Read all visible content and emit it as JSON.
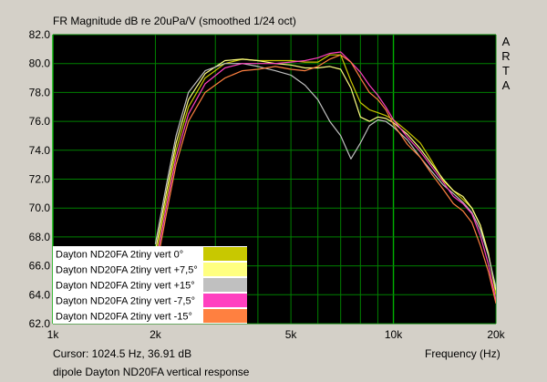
{
  "title": "FR Magnitude dB re 20uPa/V (smoothed 1/24 oct)",
  "cursor_readout": "Cursor: 1024.5 Hz, 36.91 dB",
  "caption": "dipole Dayton ND20FA vertical response",
  "logo_letters": [
    "A",
    "R",
    "T",
    "A"
  ],
  "colors": {
    "window_bg": "#d4d0c8",
    "plot_bg": "#000000",
    "grid": "#008000",
    "grid_major": "#00b000"
  },
  "chart_data": {
    "type": "line",
    "xlabel": "Frequency (Hz)",
    "ylabel": "",
    "xscale": "log",
    "xlim": [
      1000,
      20000
    ],
    "ylim": [
      62.0,
      82.0
    ],
    "x_ticks": [
      {
        "value": 1000,
        "label": "1k"
      },
      {
        "value": 2000,
        "label": "2k"
      },
      {
        "value": 5000,
        "label": "5k"
      },
      {
        "value": 10000,
        "label": "10k"
      },
      {
        "value": 20000,
        "label": "20k"
      }
    ],
    "y_ticks": [
      {
        "value": 62,
        "label": "62.0"
      },
      {
        "value": 64,
        "label": "64.0"
      },
      {
        "value": 66,
        "label": "66.0"
      },
      {
        "value": 68,
        "label": "68.0"
      },
      {
        "value": 70,
        "label": "70.0"
      },
      {
        "value": 72,
        "label": "72.0"
      },
      {
        "value": 74,
        "label": "74.0"
      },
      {
        "value": 76,
        "label": "76.0"
      },
      {
        "value": 78,
        "label": "78.0"
      },
      {
        "value": 80,
        "label": "80.0"
      },
      {
        "value": 82,
        "label": "82.0"
      }
    ],
    "grid": true,
    "legend_position": "bottom-left",
    "series": [
      {
        "name": "Dayton ND20FA 2tiny vert 0°",
        "color": "#c8c800",
        "x": [
          2000,
          2150,
          2300,
          2500,
          2800,
          3200,
          3600,
          4000,
          4500,
          5000,
          5500,
          6000,
          6500,
          7000,
          7500,
          8000,
          8500,
          9000,
          9500,
          10000,
          11000,
          12000,
          13000,
          14000,
          15000,
          16000,
          17000,
          18000,
          19000,
          20000
        ],
        "y": [
          66.5,
          70.5,
          74.0,
          77.0,
          79.0,
          80.0,
          80.3,
          80.2,
          80.2,
          80.2,
          80.1,
          80.1,
          80.6,
          80.6,
          78.8,
          77.3,
          76.8,
          76.6,
          76.4,
          76.1,
          75.3,
          74.5,
          73.2,
          71.9,
          71.2,
          70.6,
          70.0,
          68.8,
          66.9,
          64.0
        ]
      },
      {
        "name": "Dayton ND20FA 2tiny vert +7,5°",
        "color": "#ffff80",
        "x": [
          2000,
          2150,
          2300,
          2500,
          2800,
          3200,
          3600,
          4000,
          4500,
          5000,
          5500,
          6000,
          6500,
          7000,
          7500,
          8000,
          8500,
          9000,
          9500,
          10000,
          11000,
          12000,
          13000,
          14000,
          15000,
          16000,
          17000,
          18000,
          19000,
          20000
        ],
        "y": [
          67.0,
          71.0,
          74.5,
          77.5,
          79.3,
          80.2,
          80.3,
          80.2,
          80.0,
          79.9,
          79.7,
          79.7,
          79.8,
          79.6,
          78.3,
          76.3,
          76.0,
          76.3,
          76.2,
          75.9,
          75.1,
          74.1,
          73.0,
          72.0,
          71.2,
          70.8,
          70.0,
          68.8,
          66.8,
          64.3
        ]
      },
      {
        "name": "Dayton ND20FA 2tiny vert +15°",
        "color": "#c0c0c0",
        "x": [
          2000,
          2150,
          2300,
          2500,
          2800,
          3200,
          3600,
          4000,
          4500,
          5000,
          5500,
          6000,
          6500,
          7000,
          7500,
          8000,
          8500,
          9000,
          9500,
          10000,
          11000,
          12000,
          13000,
          14000,
          15000,
          16000,
          17000,
          18000,
          19000,
          20000
        ],
        "y": [
          67.5,
          71.5,
          75.0,
          78.0,
          79.5,
          80.0,
          80.0,
          79.8,
          79.5,
          79.2,
          78.5,
          77.5,
          76.0,
          75.0,
          73.4,
          74.5,
          75.7,
          76.1,
          76.0,
          75.6,
          74.7,
          73.5,
          72.5,
          71.6,
          71.0,
          70.4,
          69.7,
          68.5,
          66.7,
          64.5
        ]
      },
      {
        "name": "Dayton ND20FA 2tiny vert -7,5°",
        "color": "#ff40c0",
        "x": [
          2000,
          2150,
          2300,
          2500,
          2800,
          3200,
          3600,
          4000,
          4500,
          5000,
          5500,
          6000,
          6500,
          7000,
          7500,
          8000,
          8500,
          9000,
          9500,
          10000,
          11000,
          12000,
          13000,
          14000,
          15000,
          16000,
          17000,
          18000,
          19000,
          20000
        ],
        "y": [
          66.0,
          70.0,
          73.5,
          76.5,
          78.6,
          79.7,
          80.0,
          80.0,
          80.0,
          80.1,
          80.2,
          80.4,
          80.7,
          80.8,
          80.1,
          79.4,
          78.5,
          77.8,
          77.0,
          76.1,
          74.9,
          73.9,
          72.8,
          71.8,
          70.8,
          70.3,
          69.6,
          68.1,
          66.1,
          63.6
        ]
      },
      {
        "name": "Dayton ND20FA 2tiny vert -15°",
        "color": "#ff8040",
        "x": [
          2000,
          2150,
          2300,
          2500,
          2800,
          3200,
          3600,
          4000,
          4500,
          5000,
          5500,
          6000,
          6500,
          7000,
          7500,
          8000,
          8500,
          9000,
          9500,
          10000,
          11000,
          12000,
          13000,
          14000,
          15000,
          16000,
          17000,
          18000,
          19000,
          20000
        ],
        "y": [
          65.5,
          69.5,
          73.0,
          76.0,
          78.0,
          79.0,
          79.5,
          79.6,
          79.8,
          79.6,
          79.5,
          79.8,
          80.3,
          80.6,
          80.1,
          79.0,
          78.0,
          77.5,
          76.8,
          75.8,
          74.4,
          73.5,
          72.3,
          71.3,
          70.3,
          69.8,
          69.0,
          67.4,
          65.6,
          63.4
        ]
      }
    ]
  }
}
